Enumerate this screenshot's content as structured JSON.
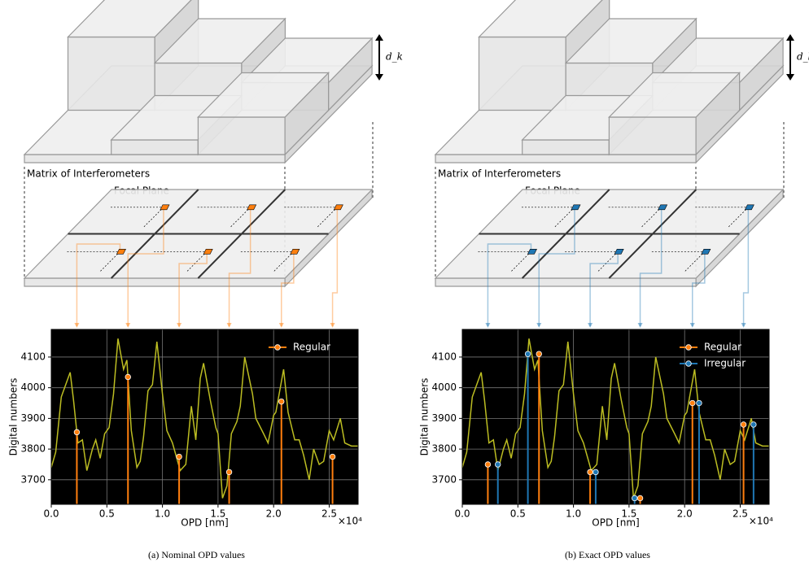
{
  "diagrams": [
    {
      "matrix_label": "Matrix of Interferometers",
      "focal_label": "Focal Plane",
      "thickness_label": "d_k"
    },
    {
      "matrix_label": "Matrix of Interferometers",
      "focal_label": "Focal Plane",
      "thickness_label": "d_k"
    }
  ],
  "chart_data": [
    {
      "type": "line",
      "caption": "(a) Nominal OPD values",
      "xlabel": "OPD [nm]",
      "ylabel": "Digital numbers",
      "x_scale_label": "×10⁴",
      "background": "#000000",
      "legend": "upper right",
      "xlim": [
        0,
        2.76
      ],
      "ylim": [
        3620,
        4190
      ],
      "xticks": [
        {
          "value": 0,
          "label": "0.0"
        },
        0.5,
        {
          "value": 1,
          "label": "1.0"
        },
        1.5,
        {
          "value": 2,
          "label": "2.0"
        },
        2.5
      ],
      "yticks": [
        3700,
        3800,
        3900,
        4000,
        4100
      ],
      "series": [
        {
          "style": "line",
          "color": "#bcbd22",
          "x": [
            0,
            0.04,
            0.09,
            0.12,
            0.17,
            0.2,
            0.24,
            0.28,
            0.32,
            0.37,
            0.4,
            0.44,
            0.48,
            0.52,
            0.56,
            0.6,
            0.65,
            0.68,
            0.72,
            0.77,
            0.8,
            0.83,
            0.87,
            0.91,
            0.95,
            1.0,
            1.04,
            1.09,
            1.16,
            1.21,
            1.26,
            1.3,
            1.34,
            1.37,
            1.43,
            1.48,
            1.5,
            1.54,
            1.58,
            1.62,
            1.67,
            1.7,
            1.74,
            1.81,
            1.84,
            1.91,
            1.95,
            2.0,
            2.02,
            2.09,
            2.13,
            2.19,
            2.23,
            2.27,
            2.32,
            2.36,
            2.41,
            2.45,
            2.5,
            2.54,
            2.6,
            2.64,
            2.7,
            2.76
          ],
          "values": [
            3740,
            3790,
            3970,
            4000,
            4050,
            3960,
            3820,
            3830,
            3730,
            3800,
            3830,
            3770,
            3850,
            3870,
            3980,
            4160,
            4060,
            4090,
            3860,
            3740,
            3760,
            3840,
            3990,
            4010,
            4150,
            3980,
            3860,
            3820,
            3730,
            3750,
            3940,
            3830,
            4030,
            4080,
            3960,
            3870,
            3850,
            3640,
            3680,
            3850,
            3890,
            3940,
            4100,
            3980,
            3900,
            3850,
            3820,
            3910,
            3920,
            4060,
            3920,
            3830,
            3830,
            3780,
            3700,
            3800,
            3750,
            3760,
            3860,
            3830,
            3900,
            3820,
            3810,
            3810
          ]
        },
        {
          "style": "stem",
          "name": "Regular",
          "color": "#ff7f0e",
          "x": [
            0.23,
            0.69,
            1.15,
            1.6,
            2.07,
            2.53
          ],
          "values": [
            3855,
            4035,
            3775,
            3725,
            3955,
            3775
          ]
        }
      ]
    },
    {
      "type": "line",
      "caption": "(b) Exact OPD values",
      "xlabel": "OPD [nm]",
      "ylabel": "Digital numbers",
      "x_scale_label": "×10⁴",
      "background": "#000000",
      "legend": "upper right",
      "xlim": [
        0,
        2.76
      ],
      "ylim": [
        3620,
        4190
      ],
      "xticks": [
        {
          "value": 0,
          "label": "0.0"
        },
        0.5,
        {
          "value": 1,
          "label": "1.0"
        },
        1.5,
        {
          "value": 2,
          "label": "2.0"
        },
        2.5
      ],
      "yticks": [
        3700,
        3800,
        3900,
        4000,
        4100
      ],
      "series": [
        {
          "style": "line",
          "color": "#bcbd22",
          "x": [
            0,
            0.04,
            0.09,
            0.12,
            0.17,
            0.2,
            0.24,
            0.28,
            0.32,
            0.37,
            0.4,
            0.44,
            0.48,
            0.52,
            0.56,
            0.6,
            0.65,
            0.68,
            0.72,
            0.77,
            0.8,
            0.83,
            0.87,
            0.91,
            0.95,
            1.0,
            1.04,
            1.09,
            1.16,
            1.21,
            1.26,
            1.3,
            1.34,
            1.37,
            1.43,
            1.48,
            1.5,
            1.54,
            1.58,
            1.62,
            1.67,
            1.7,
            1.74,
            1.81,
            1.84,
            1.91,
            1.95,
            2.0,
            2.02,
            2.09,
            2.13,
            2.19,
            2.23,
            2.27,
            2.32,
            2.36,
            2.41,
            2.45,
            2.5,
            2.54,
            2.6,
            2.64,
            2.7,
            2.76
          ],
          "values": [
            3740,
            3790,
            3970,
            4000,
            4050,
            3960,
            3820,
            3830,
            3730,
            3800,
            3830,
            3770,
            3850,
            3870,
            3980,
            4160,
            4060,
            4090,
            3860,
            3740,
            3760,
            3840,
            3990,
            4010,
            4150,
            3980,
            3860,
            3820,
            3730,
            3750,
            3940,
            3830,
            4030,
            4080,
            3960,
            3870,
            3850,
            3640,
            3680,
            3850,
            3890,
            3940,
            4100,
            3980,
            3900,
            3850,
            3820,
            3910,
            3920,
            4060,
            3920,
            3830,
            3830,
            3780,
            3700,
            3800,
            3750,
            3760,
            3860,
            3830,
            3900,
            3820,
            3810,
            3810
          ]
        },
        {
          "style": "stem",
          "name": "Regular",
          "color": "#ff7f0e",
          "x": [
            0.23,
            0.69,
            1.15,
            1.6,
            2.07,
            2.53
          ],
          "values": [
            3750,
            4110,
            3725,
            3640,
            3950,
            3880
          ]
        },
        {
          "style": "stem",
          "name": "Irregular",
          "color": "#1f77b4",
          "x": [
            0.32,
            0.59,
            1.2,
            1.55,
            2.13,
            2.62
          ],
          "values": [
            3750,
            4110,
            3725,
            3640,
            3950,
            3880
          ]
        }
      ]
    }
  ]
}
